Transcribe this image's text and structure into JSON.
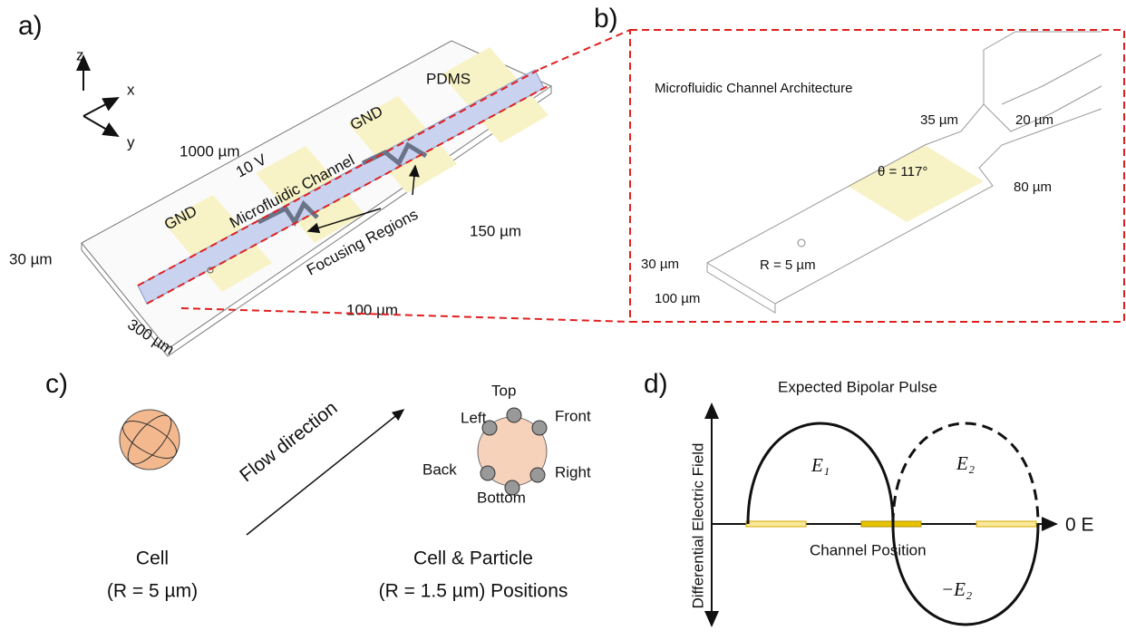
{
  "panel_a": {
    "label": "a)",
    "axis_z": "z",
    "axis_x": "x",
    "axis_y": "y",
    "length": "1000 µm",
    "material": "PDMS",
    "gnd_right": "GND",
    "voltage": "10 V",
    "channel": "Microfluidic Channel",
    "gnd_left": "GND",
    "focusing": "Focusing Regions",
    "electrode_gap": "150 µm",
    "height": "30 µm",
    "width": "300 µm",
    "electrode_width": "100 µm"
  },
  "panel_b": {
    "label": "b)",
    "title": "Microfluidic Channel Architecture",
    "constriction": "35 µm",
    "neck": "20 µm",
    "angle": "θ = 117°",
    "taper": "80 µm",
    "height": "30 µm",
    "radius": "R = 5 µm",
    "width": "100 µm"
  },
  "panel_c": {
    "label": "c)",
    "flow": "Flow direction",
    "top": "Top",
    "left": "Left",
    "front": "Front",
    "back": "Back",
    "right": "Right",
    "bottom": "Bottom",
    "cell_title": "Cell",
    "cell_radius": "(R = 5 µm)",
    "positions_title": "Cell & Particle",
    "positions_radius": "(R = 1.5 µm) Positions"
  },
  "panel_d": {
    "label": "d)",
    "title": "Expected Bipolar Pulse",
    "y_axis": "Differential Electric Field",
    "e1": "E₁",
    "e2": "E₂",
    "neg_e2": "−E₂",
    "zero": "0 E",
    "x_axis": "Channel Position"
  }
}
